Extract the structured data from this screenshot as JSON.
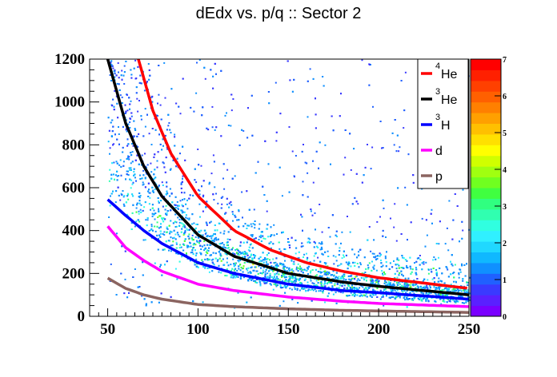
{
  "chart_data": {
    "type": "heatmap",
    "title": "dEdx vs. p/q :: Sector 2",
    "xlabel": "",
    "ylabel": "",
    "xlim": [
      40,
      250
    ],
    "ylim": [
      0,
      1200
    ],
    "x_ticks": [
      "50",
      "100",
      "150",
      "200",
      "250"
    ],
    "y_ticks": [
      "0",
      "200",
      "400",
      "600",
      "800",
      "1000",
      "1200"
    ],
    "colorbar": {
      "range": [
        0,
        7
      ],
      "ticks": [
        "0",
        "1",
        "2",
        "3",
        "4",
        "5",
        "6",
        "7"
      ],
      "colors": [
        "#7a00ff",
        "#5a20ff",
        "#3a3aff",
        "#2060ff",
        "#1090ff",
        "#10b8ff",
        "#20d8ff",
        "#30f0ff",
        "#30ffe0",
        "#30ffb0",
        "#30ff80",
        "#40ff40",
        "#70ff20",
        "#a0ff10",
        "#d0ff00",
        "#ffff00",
        "#ffe000",
        "#ffc000",
        "#ffa000",
        "#ff8000",
        "#ff6000",
        "#ff4000",
        "#ff2000",
        "#ff0000"
      ]
    },
    "series": [
      {
        "name": "4He",
        "color": "#ff0000",
        "x": [
          67,
          75,
          85,
          100,
          120,
          140,
          160,
          180,
          200,
          220,
          250
        ],
        "y": [
          1200,
          960,
          760,
          560,
          400,
          310,
          250,
          210,
          180,
          160,
          130
        ]
      },
      {
        "name": "3He",
        "color": "#000000",
        "x": [
          50,
          55,
          60,
          70,
          80,
          100,
          120,
          150,
          180,
          200,
          250
        ],
        "y": [
          1200,
          1050,
          900,
          700,
          560,
          380,
          280,
          200,
          160,
          140,
          100
        ]
      },
      {
        "name": "3H",
        "color": "#0000ff",
        "x": [
          50,
          60,
          70,
          80,
          100,
          120,
          150,
          180,
          200,
          250
        ],
        "y": [
          545,
          470,
          400,
          340,
          250,
          200,
          150,
          120,
          110,
          80
        ]
      },
      {
        "name": "d",
        "color": "#ff00ff",
        "x": [
          50,
          60,
          70,
          80,
          100,
          120,
          150,
          180,
          200,
          250
        ],
        "y": [
          420,
          320,
          260,
          210,
          150,
          120,
          90,
          70,
          60,
          45
        ]
      },
      {
        "name": "p",
        "color": "#8b6460",
        "x": [
          50,
          60,
          70,
          80,
          100,
          120,
          150,
          180,
          200,
          250
        ],
        "y": [
          178,
          130,
          100,
          80,
          55,
          45,
          35,
          28,
          25,
          18
        ]
      }
    ],
    "legend": {
      "placement": "top-right",
      "entries": [
        {
          "sup": "4",
          "text": "He"
        },
        {
          "sup": "3",
          "text": "He"
        },
        {
          "sup": "3",
          "text": "H"
        },
        {
          "sup": "",
          "text": "d"
        },
        {
          "sup": "",
          "text": "p"
        }
      ]
    }
  }
}
